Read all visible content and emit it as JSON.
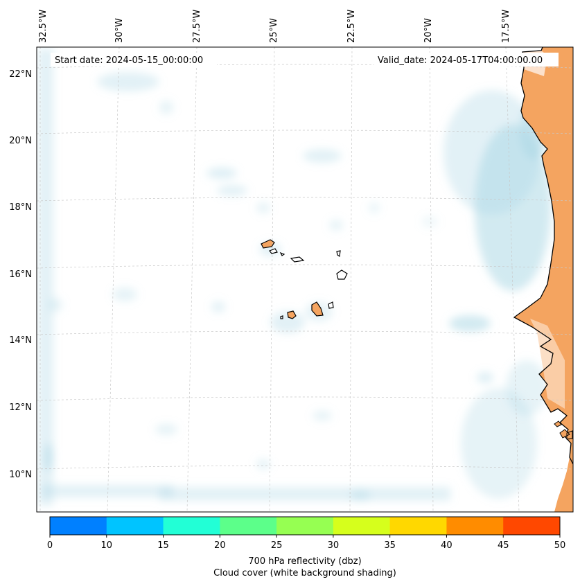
{
  "map": {
    "start_label": "Start date: 2024-05-15_00:00:00",
    "valid_label": "Valid_date: 2024-05-17T04:00:00.00",
    "lon_labels": [
      "32.5°W",
      "30°W",
      "27.5°W",
      "25°W",
      "22.5°W",
      "20°W",
      "17.5°W"
    ],
    "lat_labels": [
      "22°N",
      "20°N",
      "18°N",
      "16°N",
      "14°N",
      "12°N",
      "10°N"
    ],
    "colorbar": {
      "ticks": [
        "0",
        "10",
        "15",
        "20",
        "25",
        "30",
        "35",
        "40",
        "45",
        "50"
      ],
      "colors": [
        "#0080ff",
        "#00c4ff",
        "#22ffd6",
        "#5cff8a",
        "#96ff52",
        "#d6ff1c",
        "#ffd800",
        "#ff8c00",
        "#ff4800"
      ],
      "label_line1": "700 hPa reflectivity (dbz)",
      "label_line2": "Cloud cover (white background shading)"
    },
    "colors": {
      "land": "#f4a460",
      "cloud": "#add8e6",
      "coast": "#000000",
      "grid": "#c8c8c8"
    }
  }
}
